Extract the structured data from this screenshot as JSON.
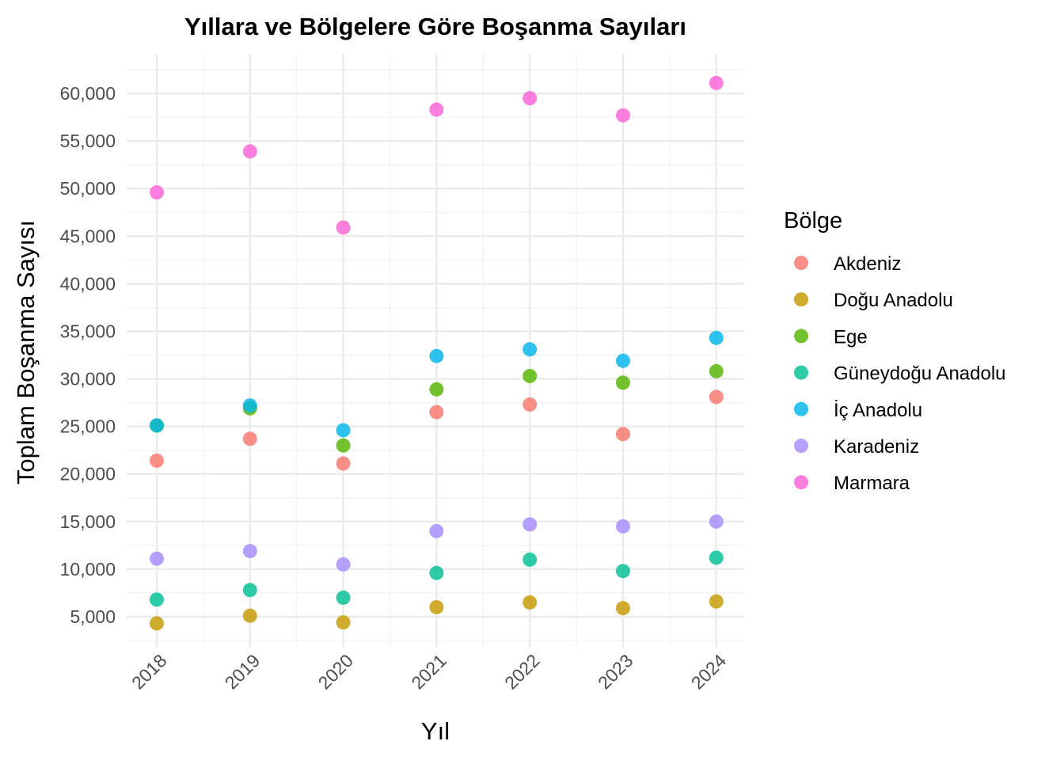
{
  "chart_data": {
    "type": "scatter",
    "title": "Yıllara ve Bölgelere Göre Boşanma Sayıları",
    "xlabel": "Yıl",
    "ylabel": "Toplam Boşanma Sayısı",
    "x": [
      "2018",
      "2019",
      "2020",
      "2021",
      "2022",
      "2023",
      "2024"
    ],
    "y_ticks": [
      5000,
      10000,
      15000,
      20000,
      25000,
      30000,
      35000,
      40000,
      45000,
      50000,
      55000,
      60000
    ],
    "y_tick_labels": [
      "5,000",
      "10,000",
      "15,000",
      "20,000",
      "25,000",
      "30,000",
      "35,000",
      "40,000",
      "45,000",
      "50,000",
      "55,000",
      "60,000"
    ],
    "ylim": [
      1500,
      63500
    ],
    "grid": true,
    "legend": {
      "title": "Bölge",
      "position": "right"
    },
    "series": [
      {
        "name": "Akdeniz",
        "color": "#F8766D",
        "values": [
          21400,
          23700,
          21100,
          26500,
          27300,
          24200,
          28100
        ]
      },
      {
        "name": "Doğu Anadolu",
        "color": "#C49A00",
        "values": [
          4300,
          5100,
          4400,
          6000,
          6500,
          5900,
          6600
        ]
      },
      {
        "name": "Ege",
        "color": "#53B400",
        "values": [
          25100,
          26900,
          23000,
          28900,
          30300,
          29600,
          30800
        ]
      },
      {
        "name": "Güneydoğu Anadolu",
        "color": "#00C094",
        "values": [
          6800,
          7800,
          7000,
          9600,
          11000,
          9800,
          11200
        ]
      },
      {
        "name": "İç Anadolu",
        "color": "#00B6EB",
        "values": [
          25100,
          27200,
          24600,
          32400,
          33100,
          31900,
          34300
        ]
      },
      {
        "name": "Karadeniz",
        "color": "#A58AFF",
        "values": [
          11100,
          11900,
          10500,
          14000,
          14700,
          14500,
          15000
        ]
      },
      {
        "name": "Marmara",
        "color": "#FB61D7",
        "values": [
          49600,
          53900,
          45900,
          58300,
          59500,
          57700,
          61100
        ]
      }
    ]
  }
}
